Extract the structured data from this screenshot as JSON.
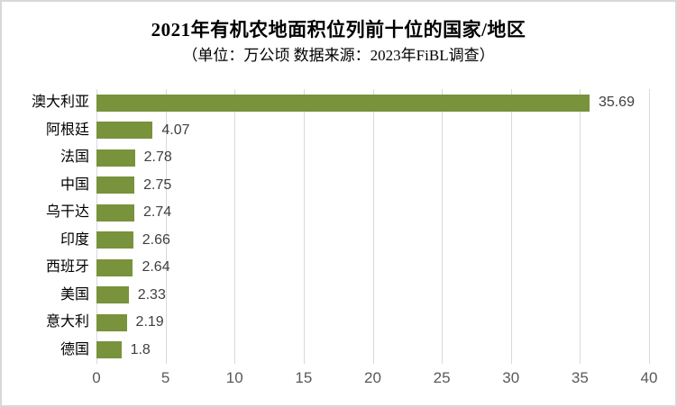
{
  "title": "2021年有机农地面积位列前十位的国家/地区",
  "subtitle": "（单位：万公顷 数据来源：2023年FiBL调查）",
  "chart_data": {
    "type": "bar",
    "orientation": "horizontal",
    "title": "2021年有机农地面积位列前十位的国家/地区",
    "subtitle": "（单位：万公顷 数据来源：2023年FiBL调查）",
    "categories": [
      "澳大利亚",
      "阿根廷",
      "法国",
      "中国",
      "乌干达",
      "印度",
      "西班牙",
      "美国",
      "意大利",
      "德国"
    ],
    "values": [
      35.69,
      4.07,
      2.78,
      2.75,
      2.74,
      2.66,
      2.64,
      2.33,
      2.19,
      1.8
    ],
    "value_labels": [
      "35.69",
      "4.07",
      "2.78",
      "2.75",
      "2.74",
      "2.66",
      "2.64",
      "2.33",
      "2.19",
      "1.8"
    ],
    "xlabel": "",
    "ylabel": "",
    "xlim": [
      0,
      40
    ],
    "xticks": [
      0,
      5,
      10,
      15,
      20,
      25,
      30,
      35,
      40
    ],
    "grid": true,
    "legend": false,
    "bar_color": "#79923c",
    "gridline_color": "#d9d9d9",
    "tick_label_color": "#595959",
    "value_label_color": "#3f3f3f",
    "frame_border_color": "#d8d8d8"
  }
}
